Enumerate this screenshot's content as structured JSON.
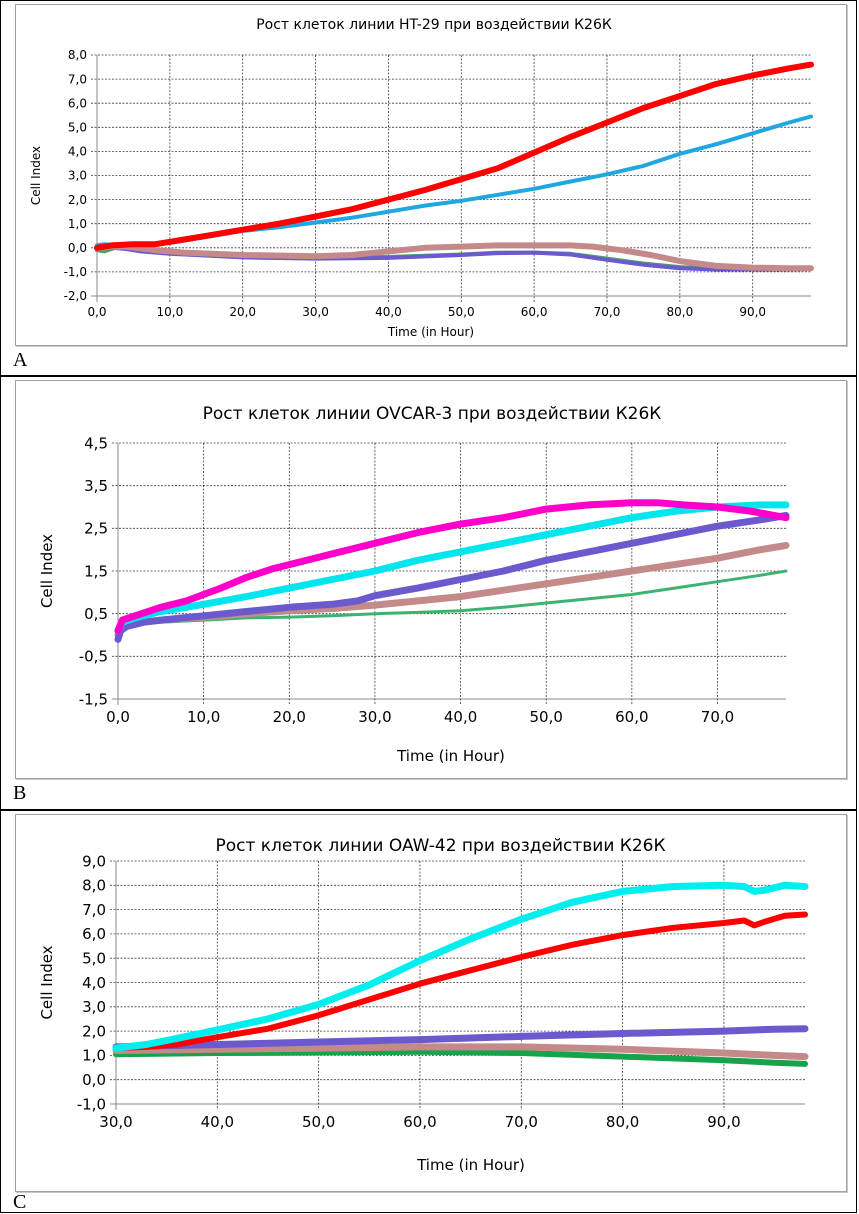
{
  "chart_data": [
    {
      "id": "A",
      "type": "line",
      "panel_label": "A",
      "title": "Рост клеток линии HT-29 при воздействии К26К",
      "xlabel": "Time (in Hour)",
      "ylabel": "Cell Index",
      "xlim": [
        0,
        98
      ],
      "ylim": [
        -2,
        8
      ],
      "xticks": [
        0,
        10,
        20,
        30,
        40,
        50,
        60,
        70,
        80,
        90
      ],
      "xtick_labels": [
        "0,0",
        "10,0",
        "20,0",
        "30,0",
        "40,0",
        "50,0",
        "60,0",
        "70,0",
        "80,0",
        "90,0"
      ],
      "yticks": [
        -2,
        -1,
        0,
        1,
        2,
        3,
        4,
        5,
        6,
        7,
        8
      ],
      "ytick_labels": [
        "-2,0",
        "-1,0",
        "0,0",
        "1,0",
        "2,0",
        "3,0",
        "4,0",
        "5,0",
        "6,0",
        "7,0",
        "8,0"
      ],
      "grid": true,
      "legend": "none",
      "series": [
        {
          "name": "series-1",
          "color": "#ff0000",
          "width": 6,
          "x": [
            0,
            2,
            5,
            8,
            10,
            15,
            20,
            25,
            30,
            35,
            40,
            45,
            50,
            55,
            60,
            65,
            70,
            75,
            80,
            85,
            90,
            95,
            98
          ],
          "y": [
            0.0,
            0.1,
            0.15,
            0.15,
            0.25,
            0.5,
            0.75,
            1.0,
            1.3,
            1.6,
            2.0,
            2.4,
            2.85,
            3.3,
            3.95,
            4.6,
            5.2,
            5.8,
            6.3,
            6.8,
            7.15,
            7.45,
            7.6
          ]
        },
        {
          "name": "series-2",
          "color": "#1ea7e1",
          "width": 4,
          "x": [
            0,
            1,
            3,
            5,
            10,
            15,
            20,
            25,
            30,
            35,
            40,
            45,
            50,
            55,
            60,
            65,
            70,
            75,
            80,
            85,
            90,
            95,
            98
          ],
          "y": [
            0.1,
            0.15,
            0.1,
            0.1,
            0.2,
            0.45,
            0.7,
            0.85,
            1.05,
            1.25,
            1.5,
            1.75,
            1.95,
            2.2,
            2.45,
            2.75,
            3.05,
            3.4,
            3.9,
            4.3,
            4.75,
            5.2,
            5.45
          ]
        },
        {
          "name": "series-3",
          "color": "#c48a8a",
          "width": 6,
          "x": [
            0,
            2,
            4,
            8,
            12,
            20,
            30,
            35,
            40,
            45,
            50,
            55,
            60,
            65,
            68,
            72,
            76,
            80,
            85,
            90,
            95,
            98
          ],
          "y": [
            0.0,
            0.05,
            0.05,
            -0.1,
            -0.2,
            -0.3,
            -0.35,
            -0.3,
            -0.15,
            0.0,
            0.05,
            0.1,
            0.1,
            0.1,
            0.05,
            -0.1,
            -0.3,
            -0.55,
            -0.75,
            -0.82,
            -0.85,
            -0.85
          ]
        },
        {
          "name": "series-4",
          "color": "#6a5acd",
          "width": 4,
          "x": [
            0,
            2,
            4,
            6,
            10,
            20,
            30,
            40,
            50,
            55,
            60,
            65,
            70,
            75,
            80,
            85,
            90,
            95,
            98
          ],
          "y": [
            0.0,
            0.0,
            -0.05,
            -0.15,
            -0.25,
            -0.4,
            -0.45,
            -0.42,
            -0.3,
            -0.22,
            -0.2,
            -0.28,
            -0.5,
            -0.7,
            -0.85,
            -0.9,
            -0.9,
            -0.9,
            -0.88
          ]
        },
        {
          "name": "series-5",
          "color": "#4aa36b",
          "width": 4,
          "x": [
            0,
            1,
            3,
            5,
            10,
            20,
            30,
            40,
            50,
            55,
            60,
            65,
            70,
            75,
            80,
            85,
            90,
            95,
            98
          ],
          "y": [
            -0.1,
            -0.15,
            0.05,
            0.0,
            -0.2,
            -0.32,
            -0.4,
            -0.38,
            -0.28,
            -0.2,
            -0.2,
            -0.25,
            -0.45,
            -0.65,
            -0.8,
            -0.85,
            -0.87,
            -0.87,
            -0.85
          ]
        }
      ]
    },
    {
      "id": "B",
      "type": "line",
      "panel_label": "B",
      "title": "Рост клеток линии OVCAR-3 при воздействии К26К",
      "xlabel": "Time (in Hour)",
      "ylabel": "Cell Index",
      "xlim": [
        0,
        78
      ],
      "ylim": [
        -1.5,
        4.5
      ],
      "xticks": [
        0,
        10,
        20,
        30,
        40,
        50,
        60,
        70
      ],
      "xtick_labels": [
        "0,0",
        "10,0",
        "20,0",
        "30,0",
        "40,0",
        "50,0",
        "60,0",
        "70,0"
      ],
      "yticks": [
        -1.5,
        -0.5,
        0.5,
        1.5,
        2.5,
        3.5,
        4.5
      ],
      "ytick_labels": [
        "-1,5",
        "-0,5",
        "0,5",
        "1,5",
        "2,5",
        "3,5",
        "4,5"
      ],
      "grid": true,
      "legend": "none",
      "series": [
        {
          "name": "series-1",
          "color": "#ff00cc",
          "width": 7,
          "x": [
            0,
            0.5,
            2,
            5,
            8,
            10,
            12,
            15,
            18,
            20,
            25,
            30,
            35,
            40,
            45,
            50,
            55,
            60,
            63,
            66,
            70,
            74,
            78
          ],
          "y": [
            0.1,
            0.35,
            0.45,
            0.65,
            0.8,
            0.95,
            1.1,
            1.35,
            1.55,
            1.65,
            1.9,
            2.15,
            2.4,
            2.6,
            2.75,
            2.95,
            3.05,
            3.1,
            3.1,
            3.05,
            3.0,
            2.9,
            2.75
          ]
        },
        {
          "name": "series-2",
          "color": "#00e5ee",
          "width": 7,
          "x": [
            0,
            0.5,
            2,
            5,
            10,
            15,
            20,
            25,
            30,
            35,
            40,
            45,
            50,
            55,
            60,
            65,
            70,
            75,
            78
          ],
          "y": [
            0.1,
            0.3,
            0.4,
            0.55,
            0.72,
            0.9,
            1.1,
            1.3,
            1.5,
            1.75,
            1.95,
            2.15,
            2.35,
            2.55,
            2.75,
            2.9,
            3.0,
            3.05,
            3.05
          ]
        },
        {
          "name": "series-3",
          "color": "#6a5acd",
          "width": 7,
          "x": [
            0,
            0.3,
            1,
            3,
            5,
            10,
            15,
            20,
            25,
            28,
            30,
            35,
            40,
            45,
            50,
            55,
            60,
            65,
            70,
            75,
            78
          ],
          "y": [
            -0.1,
            0.1,
            0.2,
            0.3,
            0.35,
            0.45,
            0.55,
            0.65,
            0.72,
            0.8,
            0.92,
            1.1,
            1.3,
            1.5,
            1.75,
            1.95,
            2.15,
            2.35,
            2.55,
            2.7,
            2.8
          ]
        },
        {
          "name": "series-4",
          "color": "#c48a8a",
          "width": 7,
          "x": [
            0,
            0.3,
            1,
            3,
            5,
            10,
            15,
            20,
            25,
            30,
            35,
            40,
            45,
            50,
            55,
            60,
            65,
            70,
            75,
            78
          ],
          "y": [
            0.0,
            0.2,
            0.25,
            0.3,
            0.35,
            0.42,
            0.5,
            0.57,
            0.62,
            0.7,
            0.8,
            0.9,
            1.05,
            1.2,
            1.35,
            1.5,
            1.65,
            1.8,
            2.0,
            2.1
          ]
        },
        {
          "name": "series-5",
          "color": "#3cb371",
          "width": 3,
          "x": [
            0,
            0.3,
            1,
            3,
            5,
            10,
            15,
            20,
            25,
            30,
            35,
            40,
            45,
            50,
            55,
            60,
            65,
            70,
            75,
            78
          ],
          "y": [
            0.0,
            0.15,
            0.22,
            0.27,
            0.3,
            0.35,
            0.4,
            0.42,
            0.45,
            0.5,
            0.53,
            0.57,
            0.65,
            0.75,
            0.85,
            0.95,
            1.1,
            1.25,
            1.4,
            1.5
          ]
        }
      ]
    },
    {
      "id": "C",
      "type": "line",
      "panel_label": "C",
      "title": "Рост клеток линии OAW-42 при воздействии К26К",
      "xlabel": "Time (in Hour)",
      "ylabel": "Cell Index",
      "xlim": [
        30,
        98
      ],
      "ylim": [
        -1,
        9
      ],
      "xticks": [
        30,
        40,
        50,
        60,
        70,
        80,
        90
      ],
      "xtick_labels": [
        "30,0",
        "40,0",
        "50,0",
        "60,0",
        "70,0",
        "80,0",
        "90,0"
      ],
      "yticks": [
        -1,
        0,
        1,
        2,
        3,
        4,
        5,
        6,
        7,
        8,
        9
      ],
      "ytick_labels": [
        "-1,0",
        "0,0",
        "1,0",
        "2,0",
        "3,0",
        "4,0",
        "5,0",
        "6,0",
        "7,0",
        "8,0",
        "9,0"
      ],
      "grid": true,
      "legend": "none",
      "series": [
        {
          "name": "series-1",
          "color": "#00eeee",
          "width": 7,
          "x": [
            30,
            33,
            36,
            40,
            45,
            50,
            55,
            60,
            65,
            70,
            75,
            80,
            85,
            90,
            92,
            93,
            94,
            96,
            98
          ],
          "y": [
            1.3,
            1.45,
            1.7,
            2.05,
            2.5,
            3.1,
            3.9,
            4.9,
            5.8,
            6.6,
            7.3,
            7.75,
            7.95,
            8.0,
            7.95,
            7.75,
            7.8,
            8.0,
            7.95
          ]
        },
        {
          "name": "series-2",
          "color": "#ff0000",
          "width": 6,
          "x": [
            30,
            33,
            36,
            40,
            45,
            50,
            55,
            60,
            65,
            70,
            75,
            80,
            85,
            90,
            92,
            93,
            94,
            96,
            98
          ],
          "y": [
            1.3,
            1.35,
            1.45,
            1.75,
            2.1,
            2.65,
            3.3,
            3.95,
            4.5,
            5.05,
            5.55,
            5.95,
            6.25,
            6.45,
            6.55,
            6.35,
            6.5,
            6.75,
            6.8
          ]
        },
        {
          "name": "series-3",
          "color": "#6a5acd",
          "width": 7,
          "x": [
            30,
            40,
            50,
            60,
            70,
            80,
            90,
            95,
            98
          ],
          "y": [
            1.35,
            1.45,
            1.55,
            1.65,
            1.78,
            1.9,
            2.0,
            2.08,
            2.1
          ]
        },
        {
          "name": "series-4",
          "color": "#c48a8a",
          "width": 7,
          "x": [
            30,
            40,
            50,
            60,
            70,
            80,
            90,
            95,
            98
          ],
          "y": [
            1.2,
            1.25,
            1.3,
            1.35,
            1.35,
            1.25,
            1.1,
            1.0,
            0.95
          ]
        },
        {
          "name": "series-5",
          "color": "#16a34a",
          "width": 6,
          "x": [
            30,
            40,
            50,
            60,
            70,
            80,
            90,
            95,
            98
          ],
          "y": [
            1.05,
            1.1,
            1.12,
            1.15,
            1.1,
            0.95,
            0.8,
            0.7,
            0.65
          ]
        }
      ]
    }
  ]
}
